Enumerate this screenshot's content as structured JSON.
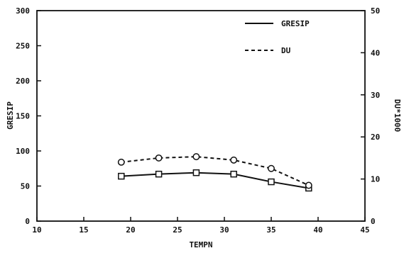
{
  "chart_data": {
    "type": "line",
    "xlabel": "TEMPN",
    "ylabel": "GRESIP",
    "y2label": "DU*1000",
    "xlim": [
      10,
      45
    ],
    "ylim": [
      0,
      300
    ],
    "y2lim": [
      0,
      50
    ],
    "x_ticks": [
      "10",
      "15",
      "20",
      "25",
      "30",
      "35",
      "40",
      "45"
    ],
    "y_ticks": [
      "0",
      "50",
      "100",
      "150",
      "200",
      "250",
      "300"
    ],
    "y2_ticks": [
      "0",
      "10",
      "20",
      "30",
      "40",
      "50"
    ],
    "grid": false,
    "legend_position": "top-right",
    "x": [
      19,
      23,
      27,
      31,
      35,
      39
    ],
    "series": [
      {
        "name": "GRESIP",
        "axis": "left",
        "style": "solid",
        "marker": "square",
        "values": [
          64,
          67,
          69,
          67,
          56,
          47
        ]
      },
      {
        "name": "DU",
        "axis": "right",
        "style": "dashed",
        "marker": "circle",
        "values": [
          14,
          15,
          15.3,
          14.5,
          12.5,
          8.5
        ]
      }
    ]
  }
}
